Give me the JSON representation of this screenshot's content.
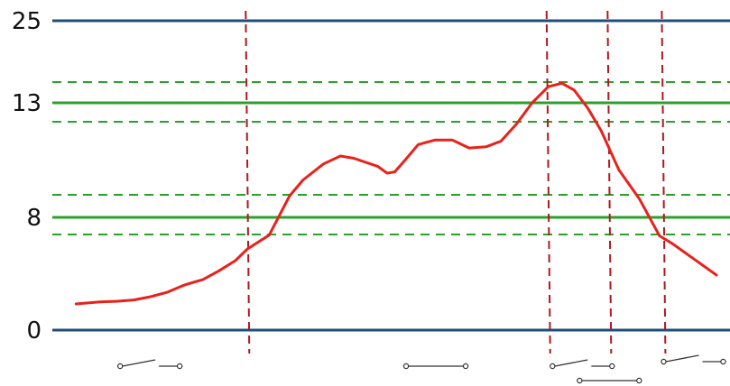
{
  "chart_data": {
    "type": "line",
    "title": "",
    "xlabel": "",
    "ylabel": "",
    "y_axis": {
      "scale": "piecewise",
      "ticks": [
        {
          "label": "25",
          "value": 25
        },
        {
          "label": "13",
          "value": 13
        },
        {
          "label": "8",
          "value": 8
        },
        {
          "label": "0",
          "value": 0
        }
      ]
    },
    "limit_lines": {
      "boundary": {
        "values": [
          0,
          25
        ],
        "color": "#1f4e79"
      },
      "setpoints": {
        "values": [
          8,
          13
        ],
        "color": "#2ca02c"
      },
      "deadbands": {
        "values": [
          7.3,
          8.9,
          12.1,
          13.9
        ],
        "color": "#2ca02c",
        "style": "dashed"
      }
    },
    "switch_events": [
      {
        "x": 0.288
      },
      {
        "x": 0.732
      },
      {
        "x": 0.822
      },
      {
        "x": 0.902
      }
    ],
    "switch_states": [
      {
        "position": 0.144,
        "state": "open"
      },
      {
        "position": 0.566,
        "state": "closed"
      },
      {
        "position": 0.782,
        "state": "open"
      },
      {
        "position": 0.822,
        "state": "closed"
      },
      {
        "position": 0.946,
        "state": "open"
      }
    ],
    "series": [
      {
        "color": "#e8221b",
        "x": [
          0.035,
          0.07,
          0.095,
          0.12,
          0.145,
          0.17,
          0.193,
          0.205,
          0.222,
          0.245,
          0.27,
          0.288,
          0.32,
          0.35,
          0.37,
          0.4,
          0.425,
          0.445,
          0.48,
          0.494,
          0.505,
          0.52,
          0.54,
          0.565,
          0.59,
          0.615,
          0.64,
          0.662,
          0.685,
          0.708,
          0.732,
          0.752,
          0.77,
          0.79,
          0.81,
          0.836,
          0.866,
          0.896,
          0.915,
          0.98
        ],
        "values": [
          2.0,
          2.15,
          2.2,
          2.3,
          2.55,
          2.9,
          3.4,
          3.6,
          3.85,
          4.5,
          5.3,
          6.2,
          7.25,
          8.85,
          9.55,
          10.25,
          10.6,
          10.5,
          10.15,
          9.85,
          9.9,
          10.4,
          11.1,
          11.3,
          11.3,
          10.95,
          11.0,
          11.25,
          12.0,
          13.0,
          13.7,
          13.85,
          13.55,
          12.75,
          11.7,
          10.0,
          8.75,
          7.2,
          6.6,
          4.2
        ]
      }
    ]
  }
}
